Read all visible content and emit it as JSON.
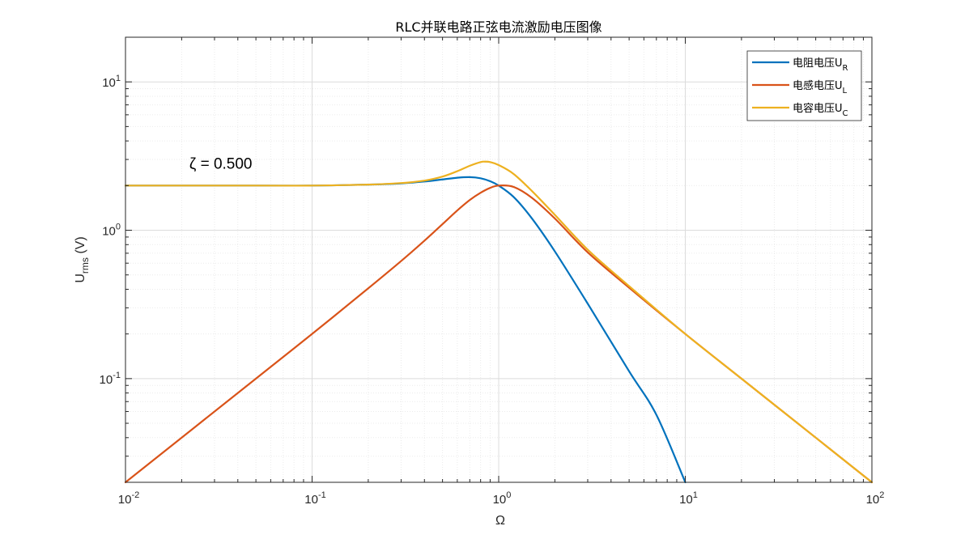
{
  "chart_data": {
    "type": "line",
    "title": "RLC并联电路正弦电流激励电压图像",
    "xlabel": "Ω",
    "ylabel": {
      "base": "U",
      "sub": "rms",
      "unit": " (V)"
    },
    "xscale": "log",
    "yscale": "log",
    "xlim": [
      0.01,
      100
    ],
    "ylim": [
      0.02,
      20
    ],
    "grid": true,
    "minor_grid": true,
    "x_ticks": [
      {
        "base": "10",
        "exp": "-2"
      },
      {
        "base": "10",
        "exp": "-1"
      },
      {
        "base": "10",
        "exp": "0"
      },
      {
        "base": "10",
        "exp": "1"
      },
      {
        "base": "10",
        "exp": "2"
      }
    ],
    "y_ticks": [
      {
        "base": "10",
        "exp": "-1"
      },
      {
        "base": "10",
        "exp": "0"
      },
      {
        "base": "10",
        "exp": "1"
      }
    ],
    "annotation": {
      "text": "ζ = 0.500",
      "x": 0.022,
      "y": 2.8
    },
    "legend_position": "top-right",
    "series": [
      {
        "name": "电阻电压U_R",
        "label_main": "电阻电压U",
        "label_sub": "R",
        "color": "#0072BD",
        "x": [
          0.01,
          0.05,
          0.1,
          0.2,
          0.3,
          0.4,
          0.5,
          0.6,
          0.7,
          0.8,
          0.9,
          1.0,
          1.2,
          1.5,
          2,
          3,
          5,
          7,
          10
        ],
        "y": [
          2.0,
          2.0,
          2.0,
          2.03,
          2.07,
          2.13,
          2.2,
          2.26,
          2.28,
          2.24,
          2.14,
          2.0,
          1.68,
          1.21,
          0.72,
          0.32,
          0.112,
          0.057,
          0.02
        ]
      },
      {
        "name": "电感电压U_L",
        "label_main": "电感电压U",
        "label_sub": "L",
        "color": "#D95319",
        "x": [
          0.01,
          0.05,
          0.1,
          0.2,
          0.3,
          0.4,
          0.5,
          0.6,
          0.7,
          0.8,
          0.9,
          1.0,
          1.2,
          1.5,
          2,
          3,
          5,
          10,
          20,
          50,
          100
        ],
        "y": [
          0.02,
          0.1,
          0.2,
          0.406,
          0.62,
          0.85,
          1.1,
          1.36,
          1.6,
          1.79,
          1.93,
          2.0,
          1.96,
          1.66,
          1.2,
          0.71,
          0.41,
          0.2,
          0.1,
          0.04,
          0.02
        ]
      },
      {
        "name": "电容电压U_C",
        "label_main": "电容电压U",
        "label_sub": "C",
        "color": "#EDB120",
        "x": [
          0.01,
          0.05,
          0.1,
          0.2,
          0.3,
          0.4,
          0.5,
          0.6,
          0.7,
          0.8,
          0.85,
          0.9,
          1.0,
          1.2,
          1.5,
          2,
          3,
          5,
          10,
          20,
          50,
          100
        ],
        "y": [
          2.0,
          2.0,
          2.0,
          2.03,
          2.08,
          2.16,
          2.3,
          2.5,
          2.72,
          2.88,
          2.9,
          2.88,
          2.75,
          2.4,
          1.85,
          1.27,
          0.74,
          0.42,
          0.2,
          0.1,
          0.04,
          0.02
        ]
      }
    ]
  }
}
